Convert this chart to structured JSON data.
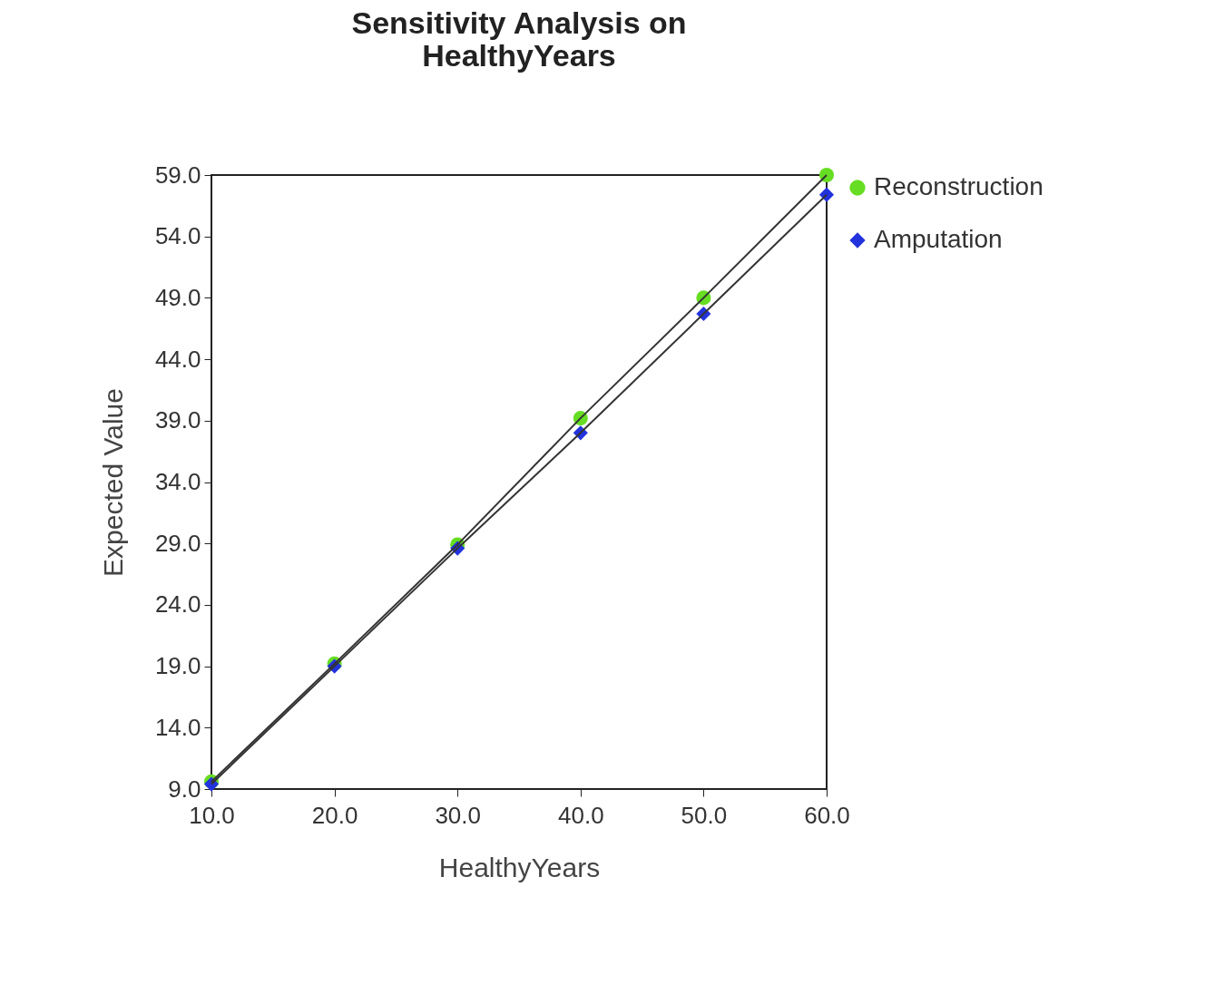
{
  "chart_data": {
    "type": "line",
    "title": [
      "Sensitivity Analysis on",
      "HealthyYears"
    ],
    "xlabel": "HealthyYears",
    "ylabel": "Expected Value",
    "x": [
      10,
      20,
      30,
      40,
      50,
      60
    ],
    "series": [
      {
        "name": "Reconstruction",
        "color": "#66dd22",
        "marker": "circle",
        "values": [
          9.6,
          19.2,
          28.9,
          39.2,
          49.0,
          59.0
        ]
      },
      {
        "name": "Amputation",
        "color": "#2233dd",
        "marker": "diamond",
        "values": [
          9.4,
          19.0,
          28.6,
          38.0,
          47.7,
          57.4
        ]
      }
    ],
    "xlim": [
      10,
      60
    ],
    "xticks": [
      {
        "value": 10,
        "label": "10.0"
      },
      {
        "value": 20,
        "label": "20.0"
      },
      {
        "value": 30,
        "label": "30.0"
      },
      {
        "value": 40,
        "label": "40.0"
      },
      {
        "value": 50,
        "label": "50.0"
      },
      {
        "value": 60,
        "label": "60.0"
      }
    ],
    "ylim": [
      9,
      59
    ],
    "yticks": [
      {
        "value": 9,
        "label": "9.0"
      },
      {
        "value": 14,
        "label": "14.0"
      },
      {
        "value": 19,
        "label": "19.0"
      },
      {
        "value": 24,
        "label": "24.0"
      },
      {
        "value": 29,
        "label": "29.0"
      },
      {
        "value": 34,
        "label": "34.0"
      },
      {
        "value": 39,
        "label": "39.0"
      },
      {
        "value": 44,
        "label": "44.0"
      },
      {
        "value": 49,
        "label": "49.0"
      },
      {
        "value": 54,
        "label": "54.0"
      },
      {
        "value": 59,
        "label": "59.0"
      }
    ],
    "grid": false,
    "legend": "top right"
  }
}
